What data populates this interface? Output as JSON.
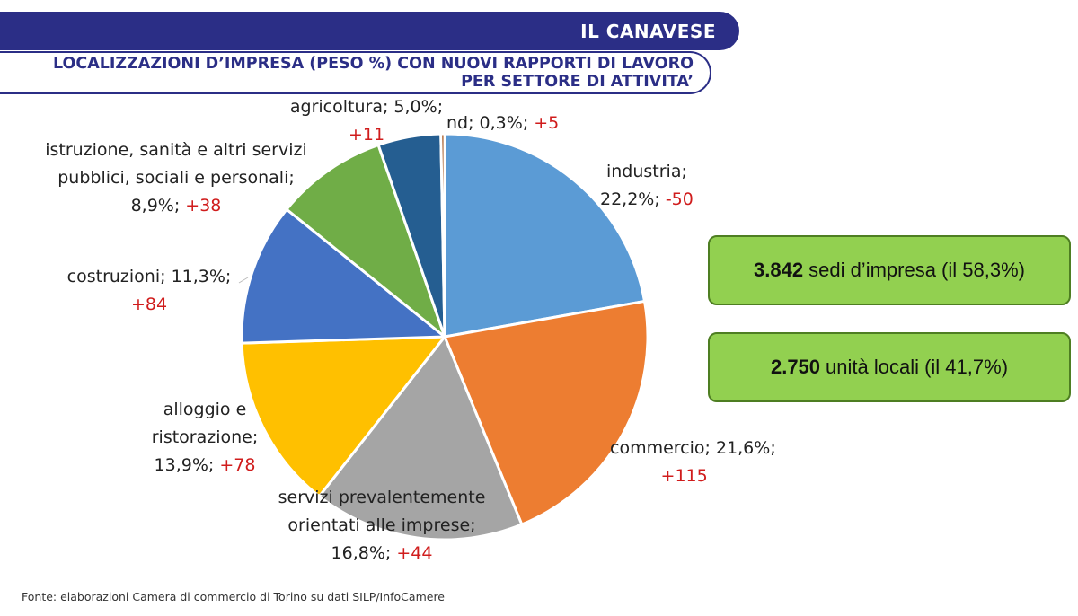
{
  "header": {
    "banner_title": "IL CANAVESE",
    "subtitle_line1": "LOCALIZZAZIONI D’IMPRESA (PESO %) CON NUOVI RAPPORTI DI LAVORO",
    "subtitle_line2": "PER SETTORE DI ATTIVITA’",
    "accent_color": "#2b2e86"
  },
  "chart_data": {
    "type": "pie",
    "title": "LOCALIZZAZIONI D’IMPRESA (PESO %) CON NUOVI RAPPORTI DI LAVORO PER SETTORE DI ATTIVITA’",
    "start": "12 o'clock, clockwise",
    "slices": [
      {
        "name": "industria",
        "percent": 22.2,
        "value_label": "22,2%",
        "delta": "-50",
        "color": "#5b9bd5"
      },
      {
        "name": "commercio",
        "percent": 21.6,
        "value_label": "21,6%",
        "delta": "+115",
        "color": "#ed7d31"
      },
      {
        "name": "servizi prevalentemente orientati alle imprese",
        "percent": 16.8,
        "value_label": "16,8%",
        "delta": "+44",
        "color": "#a5a5a5"
      },
      {
        "name": "alloggio e ristorazione",
        "percent": 13.9,
        "value_label": "13,9%",
        "delta": "+78",
        "color": "#ffc000"
      },
      {
        "name": "costruzioni",
        "percent": 11.3,
        "value_label": "11,3%",
        "delta": "+84",
        "color": "#4472c4"
      },
      {
        "name": "istruzione, sanità e altri servizi pubblici, sociali e personali",
        "percent": 8.9,
        "value_label": "8,9%",
        "delta": "+38",
        "color": "#70ad47"
      },
      {
        "name": "agricoltura",
        "percent": 5.0,
        "value_label": "5,0%",
        "delta": "+11",
        "color": "#255e91"
      },
      {
        "name": "nd",
        "percent": 0.3,
        "value_label": "0,3%",
        "delta": "+5",
        "color": "#9e480e"
      }
    ],
    "labels": {
      "industria": {
        "l1": "industria;",
        "l2": "22,2%; ",
        "d": "-50"
      },
      "commercio": {
        "l1": "commercio; 21,6%;",
        "d": "+115"
      },
      "servizi": {
        "l1": "servizi prevalentemente",
        "l2": "orientati alle imprese;",
        "l3": "16,8%; ",
        "d": "+44"
      },
      "alloggio": {
        "l1": "alloggio e",
        "l2": "ristorazione;",
        "l3": "13,9%; ",
        "d": "+78"
      },
      "costruzioni": {
        "l1": "costruzioni; 11,3%;",
        "d": "+84"
      },
      "istruzione": {
        "l1": "istruzione, sanità e altri servizi",
        "l2": "pubblici, sociali e personali;",
        "l3": "8,9%; ",
        "d": "+38"
      },
      "agricoltura": {
        "l1": "agricoltura; 5,0%;",
        "d": "+11"
      },
      "nd": {
        "l1": "nd; 0,3%; ",
        "d": "+5"
      }
    },
    "delta_color": "#d01c1c"
  },
  "info_boxes": [
    {
      "number": "3.842",
      "text": "sedi d’impresa (il 58,3%)"
    },
    {
      "number": "2.750",
      "text": "unità locali (il 41,7%)"
    }
  ],
  "footer": {
    "source": "Fonte: elaborazioni Camera di commercio di Torino su dati SILP/InfoCamere"
  }
}
